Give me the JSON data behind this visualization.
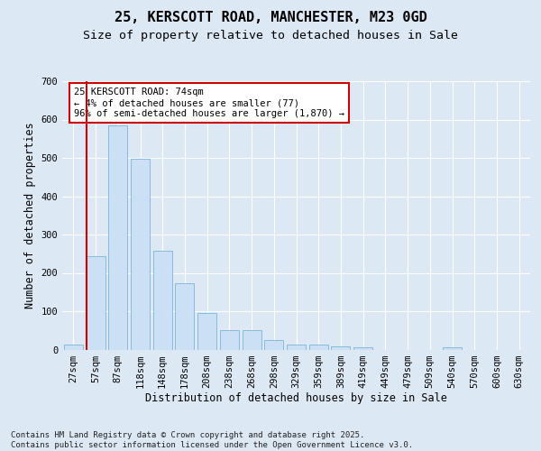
{
  "title1": "25, KERSCOTT ROAD, MANCHESTER, M23 0GD",
  "title2": "Size of property relative to detached houses in Sale",
  "xlabel": "Distribution of detached houses by size in Sale",
  "ylabel": "Number of detached properties",
  "footnote": "Contains HM Land Registry data © Crown copyright and database right 2025.\nContains public sector information licensed under the Open Government Licence v3.0.",
  "bar_labels": [
    "27sqm",
    "57sqm",
    "87sqm",
    "118sqm",
    "148sqm",
    "178sqm",
    "208sqm",
    "238sqm",
    "268sqm",
    "298sqm",
    "329sqm",
    "359sqm",
    "389sqm",
    "419sqm",
    "449sqm",
    "479sqm",
    "509sqm",
    "540sqm",
    "570sqm",
    "600sqm",
    "630sqm"
  ],
  "bar_values": [
    13,
    244,
    585,
    498,
    258,
    172,
    95,
    50,
    50,
    24,
    13,
    12,
    9,
    6,
    0,
    0,
    0,
    5,
    0,
    0,
    0
  ],
  "bar_color": "#cce0f5",
  "bar_edge_color": "#7ab4d8",
  "vline_color": "#cc0000",
  "annotation_text": "25 KERSCOTT ROAD: 74sqm\n← 4% of detached houses are smaller (77)\n96% of semi-detached houses are larger (1,870) →",
  "annotation_box_color": "#ffffff",
  "annotation_box_edge": "#cc0000",
  "ylim": [
    0,
    700
  ],
  "yticks": [
    0,
    100,
    200,
    300,
    400,
    500,
    600,
    700
  ],
  "background_color": "#dde8f5",
  "axes_bg_color": "#dde8f5",
  "grid_color": "#ffffff",
  "title_fontsize": 11,
  "subtitle_fontsize": 9.5,
  "axis_label_fontsize": 8.5,
  "tick_fontsize": 7.5,
  "footnote_fontsize": 6.5
}
